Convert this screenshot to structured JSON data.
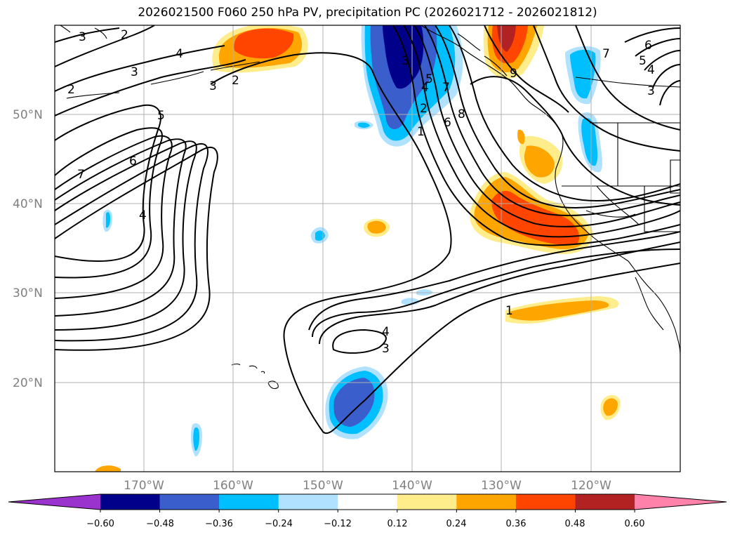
{
  "title": "2026021500 F060 250 hPa PV, precipitation PC (2026021712 - 2026021812)",
  "lat_labels": [
    "50°N",
    "40°N",
    "30°N",
    "20°N"
  ],
  "lon_labels": [
    "170°W",
    "160°W",
    "150°W",
    "140°W",
    "130°W",
    "120°W"
  ],
  "colorbar": {
    "ticks": [
      "−0.60",
      "−0.48",
      "−0.36",
      "−0.24",
      "−0.12",
      "0.12",
      "0.24",
      "0.36",
      "0.48",
      "0.60"
    ],
    "colors": [
      "#9a32cd",
      "#00008b",
      "#3a5fcd",
      "#00bfff",
      "#b0e2ff",
      "#ffffff",
      "#ffec8b",
      "#ffa500",
      "#ff4500",
      "#b22222",
      "#ff82ab"
    ]
  },
  "contour_labels": [
    "3",
    "2",
    "4",
    "3",
    "2",
    "5",
    "6",
    "7",
    "4",
    "3",
    "2",
    "3",
    "4",
    "5",
    "6",
    "7",
    "8",
    "9",
    "1",
    "2",
    "3",
    "4",
    "5",
    "6",
    "7",
    "3",
    "4",
    "5",
    "6",
    "7",
    "1",
    "4",
    "3"
  ]
}
